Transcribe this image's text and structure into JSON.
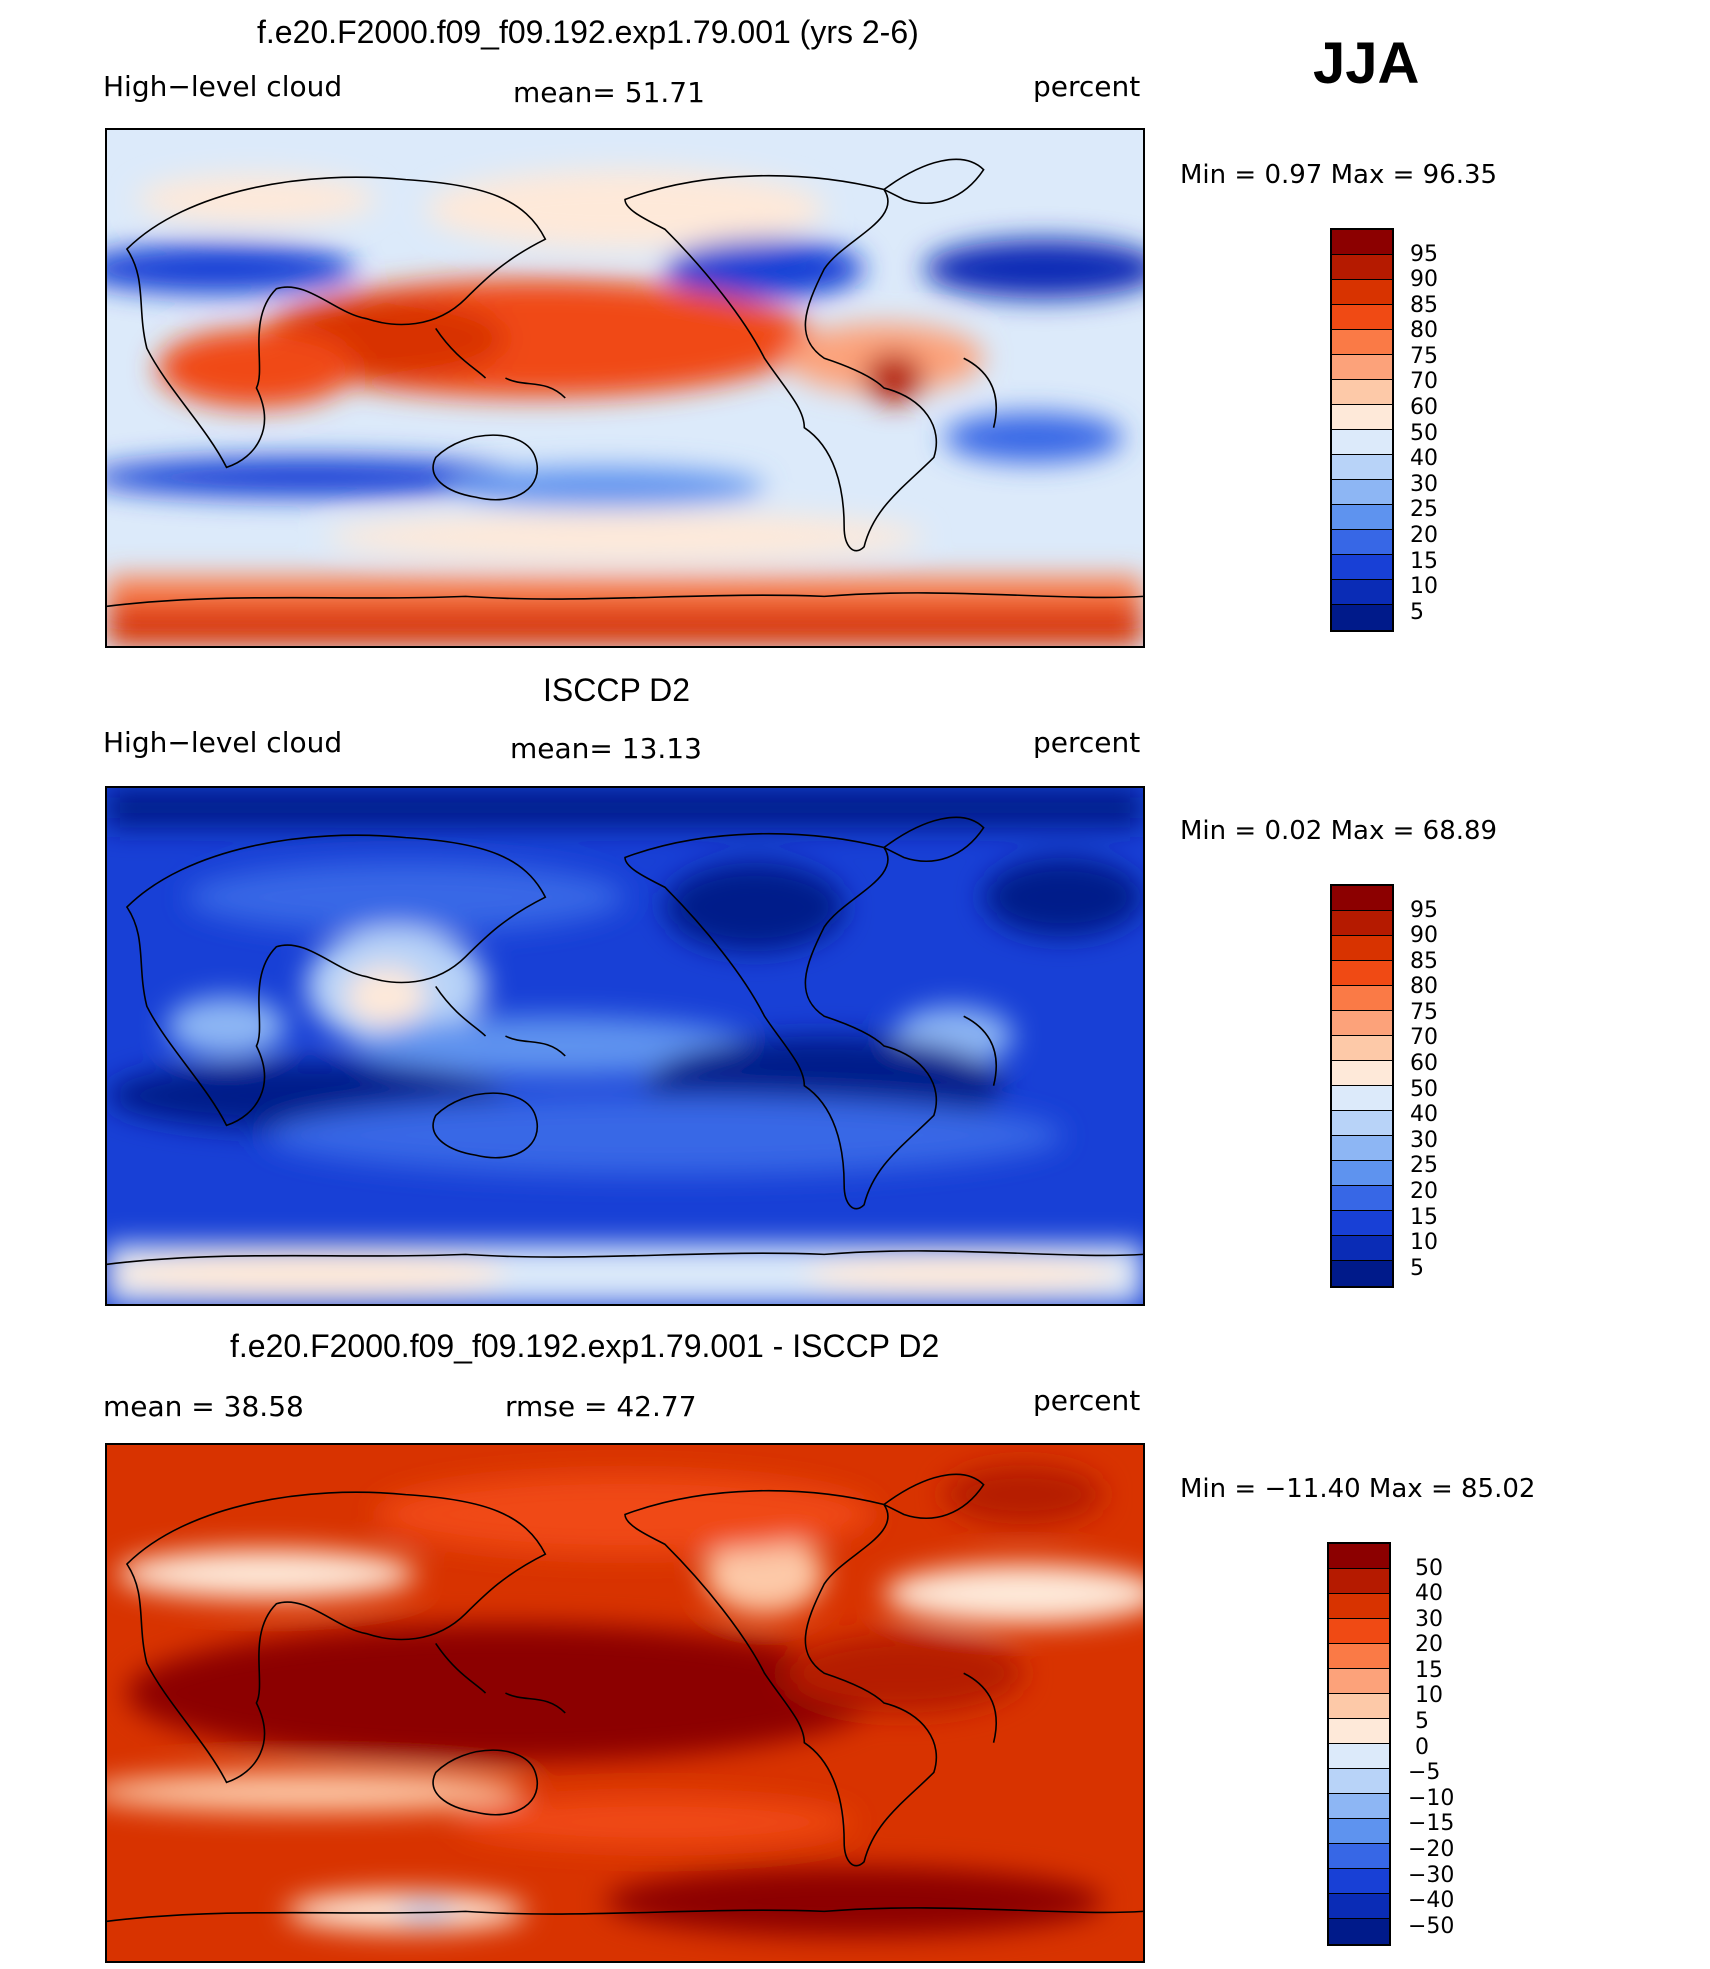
{
  "season": "JJA",
  "panels": [
    {
      "title": "f.e20.F2000.f09_f09.192.exp1.79.001 (yrs 2-6)",
      "variable": "High−level cloud",
      "stat": "mean=   51.71",
      "units": "percent",
      "minmax": "Min =    0.97 Max =   96.35",
      "colorbar_labels": [
        "95",
        "90",
        "85",
        "80",
        "75",
        "70",
        "60",
        "50",
        "40",
        "30",
        "25",
        "20",
        "15",
        "10",
        "5"
      ]
    },
    {
      "title": "ISCCP D2",
      "variable": "High−level cloud",
      "stat": "mean=   13.13",
      "units": "percent",
      "minmax": "Min =    0.02 Max =   68.89",
      "colorbar_labels": [
        "95",
        "90",
        "85",
        "80",
        "75",
        "70",
        "60",
        "50",
        "40",
        "30",
        "25",
        "20",
        "15",
        "10",
        "5"
      ]
    },
    {
      "title": "f.e20.F2000.f09_f09.192.exp1.79.001 - ISCCP D2",
      "variable": "mean =   38.58",
      "stat": "rmse =   42.77",
      "units": "percent",
      "minmax": "Min = −11.40 Max =   85.02",
      "colorbar_labels": [
        "50",
        "40",
        "30",
        "20",
        "15",
        "10",
        "5",
        "0",
        "−5",
        "−10",
        "−15",
        "−20",
        "−30",
        "−40",
        "−50"
      ]
    }
  ],
  "colors": {
    "scale": [
      "#8c0000",
      "#b51a00",
      "#d83300",
      "#f04a14",
      "#fa7a46",
      "#fca27a",
      "#fdc9a8",
      "#fee9d9",
      "#dceafa",
      "#b8d3f8",
      "#8db6f4",
      "#5e93ef",
      "#3767e6",
      "#1840d6",
      "#0a2cb6",
      "#001a8a"
    ],
    "background": "#ffffff"
  }
}
